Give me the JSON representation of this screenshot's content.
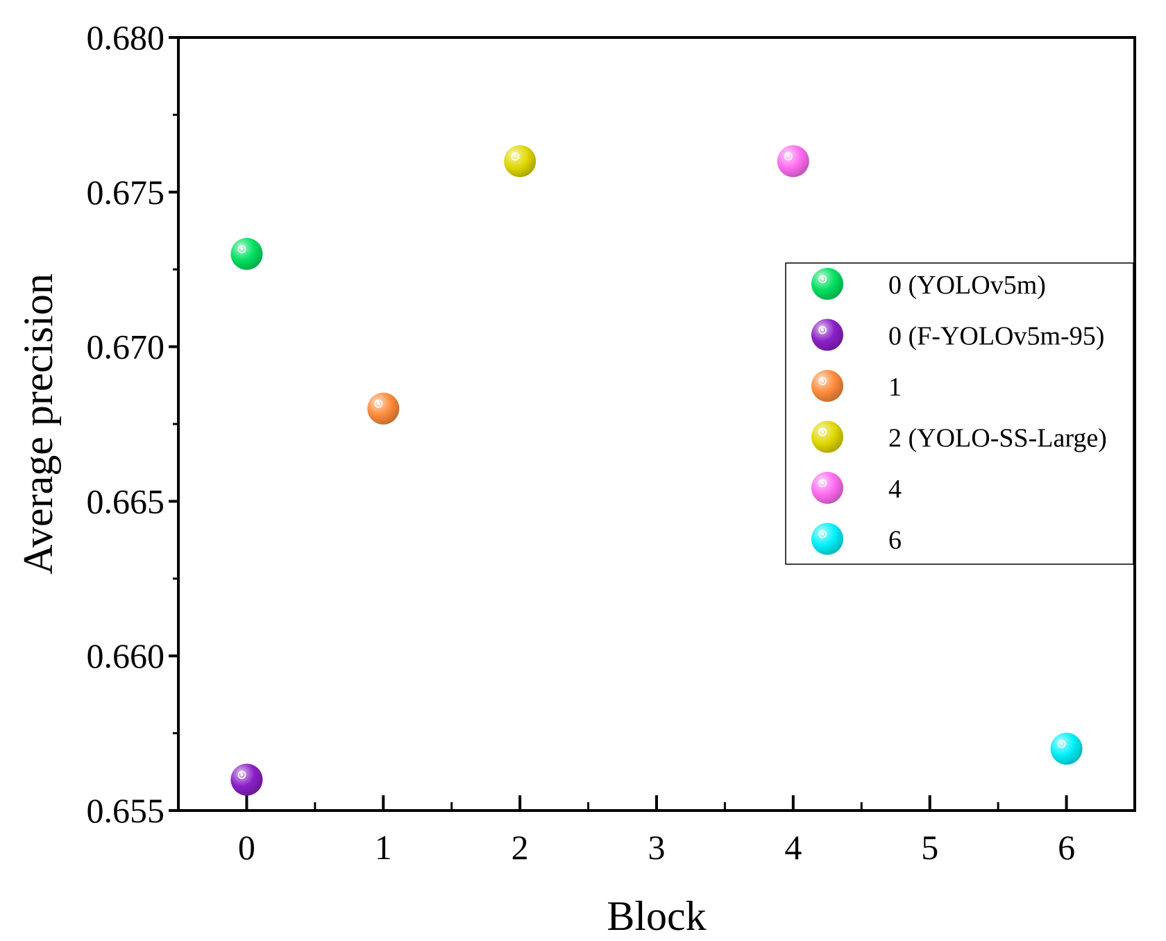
{
  "chart_data": {
    "type": "scatter",
    "title": "",
    "xlabel": "Block",
    "ylabel": "Average precision",
    "xlim": [
      -0.5,
      6.5
    ],
    "ylim": [
      0.655,
      0.68
    ],
    "xticks": [
      "0",
      "1",
      "2",
      "3",
      "4",
      "5",
      "6"
    ],
    "yticks": [
      "0.655",
      "0.660",
      "0.665",
      "0.670",
      "0.675",
      "0.680"
    ],
    "grid": false,
    "legend_position": "right",
    "series": [
      {
        "name": "0 (YOLOv5m)",
        "color": "#00e060",
        "x": [
          0
        ],
        "y": [
          0.673
        ]
      },
      {
        "name": "0 (F-YOLOv5m-95)",
        "color": "#8a20c8",
        "x": [
          0
        ],
        "y": [
          0.656
        ]
      },
      {
        "name": "1",
        "color": "#ff8c3c",
        "x": [
          1
        ],
        "y": [
          0.668
        ]
      },
      {
        "name": "2 (YOLO-SS-Large)",
        "color": "#e0d800",
        "x": [
          2
        ],
        "y": [
          0.676
        ]
      },
      {
        "name": "4",
        "color": "#ff6cf0",
        "x": [
          4
        ],
        "y": [
          0.676
        ]
      },
      {
        "name": "6",
        "color": "#00f0f8",
        "x": [
          6
        ],
        "y": [
          0.657
        ]
      }
    ]
  }
}
